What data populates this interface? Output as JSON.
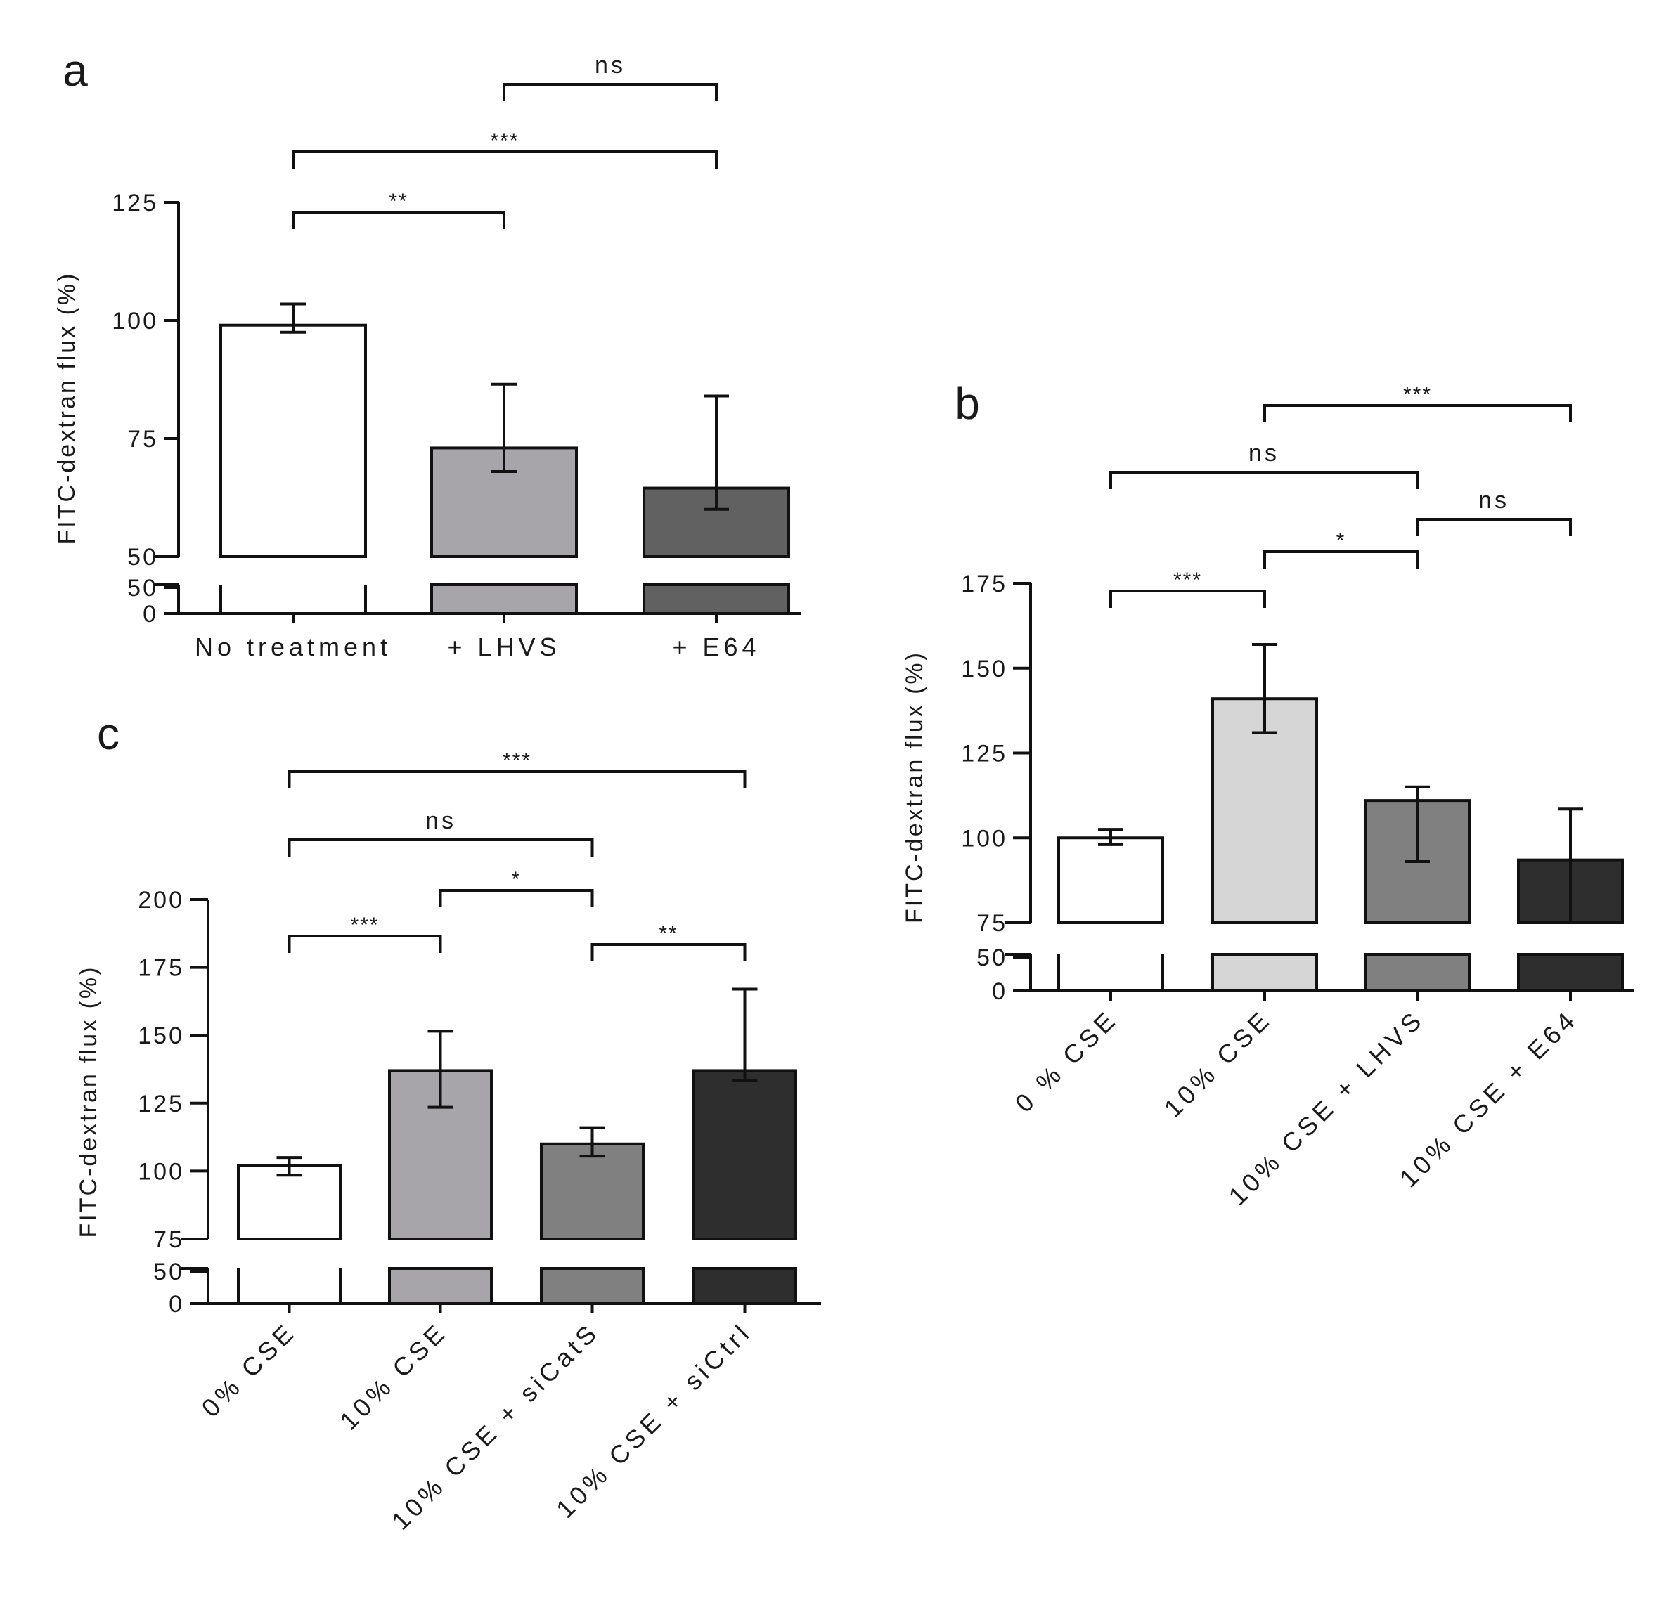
{
  "chart_data": [
    {
      "panel": "a",
      "type": "bar",
      "ylabel": "FITC-dextran flux (%)",
      "categories": [
        "No treatment",
        "+ LHVS",
        "+ E64"
      ],
      "values": [
        99,
        73,
        64.5
      ],
      "err_upper": [
        103.5,
        86.5,
        84
      ],
      "err_lower": [
        97.5,
        68,
        60
      ],
      "colors": [
        "#ffffff",
        "#a7a5aa",
        "#616161"
      ],
      "yticks_upper": [
        "125",
        "100",
        "75",
        "50"
      ],
      "ytick_values_upper": [
        125,
        100,
        75,
        50
      ],
      "yticks_lower": [
        "50",
        "0"
      ],
      "ylim_upper": [
        50,
        125
      ],
      "ylim_lower": [
        0,
        50
      ],
      "axis_break": true,
      "rotated_xlabels": false,
      "significance": [
        {
          "from": "No treatment",
          "to": "+ LHVS",
          "label": "**"
        },
        {
          "from": "No treatment",
          "to": "+ E64",
          "label": "***"
        },
        {
          "from": "+ LHVS",
          "to": "+ E64",
          "label": "ns"
        }
      ]
    },
    {
      "panel": "b",
      "type": "bar",
      "ylabel": "FITC-dextran flux (%)",
      "categories": [
        "0 % CSE",
        "10% CSE",
        "10% CSE + LHVS",
        "10% CSE + E64"
      ],
      "values": [
        100,
        141,
        111,
        93.5
      ],
      "err_upper": [
        102.5,
        157,
        115,
        108.5
      ],
      "err_lower": [
        98,
        131,
        93,
        75
      ],
      "colors": [
        "#ffffff",
        "#d6d6d6",
        "#808080",
        "#2e2e2e"
      ],
      "yticks_upper": [
        "175",
        "150",
        "125",
        "100",
        "75"
      ],
      "ytick_values_upper": [
        175,
        150,
        125,
        100,
        75
      ],
      "yticks_lower": [
        "50",
        "0"
      ],
      "ylim_upper": [
        75,
        175
      ],
      "ylim_lower": [
        0,
        50
      ],
      "axis_break": true,
      "rotated_xlabels": true,
      "significance": [
        {
          "from": "0 % CSE",
          "to": "10% CSE",
          "label": "***"
        },
        {
          "from": "10% CSE",
          "to": "10% CSE + LHVS",
          "label": "*"
        },
        {
          "from": "10% CSE + LHVS",
          "to": "10% CSE + E64",
          "label": "ns"
        },
        {
          "from": "0 % CSE",
          "to": "10% CSE + LHVS",
          "label": "ns"
        },
        {
          "from": "10% CSE",
          "to": "10% CSE + E64",
          "label": "***"
        }
      ]
    },
    {
      "panel": "c",
      "type": "bar",
      "ylabel": "FITC-dextran flux (%)",
      "categories": [
        "0% CSE",
        "10% CSE",
        "10% CSE + siCatS",
        "10% CSE + siCtrl"
      ],
      "values": [
        102,
        137,
        110,
        137
      ],
      "err_upper": [
        105,
        151.5,
        116,
        167
      ],
      "err_lower": [
        98.5,
        123.5,
        105.5,
        133.5
      ],
      "colors": [
        "#ffffff",
        "#a7a5aa",
        "#808080",
        "#2e2e2e"
      ],
      "yticks_upper": [
        "200",
        "175",
        "150",
        "125",
        "100",
        "75"
      ],
      "ytick_values_upper": [
        200,
        175,
        150,
        125,
        100,
        75
      ],
      "yticks_lower": [
        "50",
        "0"
      ],
      "ylim_upper": [
        75,
        200
      ],
      "ylim_lower": [
        0,
        50
      ],
      "axis_break": true,
      "rotated_xlabels": true,
      "significance": [
        {
          "from": "0% CSE",
          "to": "10% CSE",
          "label": "***"
        },
        {
          "from": "10% CSE",
          "to": "10% CSE + siCatS",
          "label": "*"
        },
        {
          "from": "10% CSE + siCatS",
          "to": "10% CSE + siCtrl",
          "label": "**"
        },
        {
          "from": "0% CSE",
          "to": "10% CSE + siCatS",
          "label": "ns"
        },
        {
          "from": "0% CSE",
          "to": "10% CSE + siCtrl",
          "label": "***"
        }
      ]
    }
  ]
}
